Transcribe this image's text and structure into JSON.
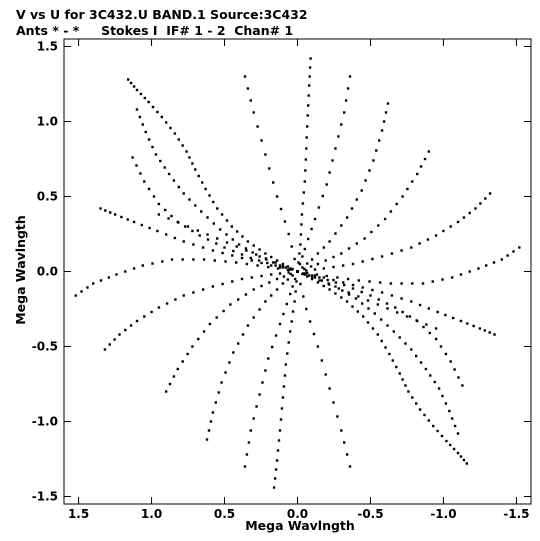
{
  "header": {
    "line1": "V vs U for 3C432.U BAND.1   Source:3C432",
    "line2": "Ants * - *     Stokes I  IF# 1 - 2  Chan# 1"
  },
  "chart_data": {
    "type": "scatter",
    "title": "V vs U for 3C432.U BAND.1   Source:3C432",
    "subtitle": "Ants * - *     Stokes I  IF# 1 - 2  Chan# 1",
    "xlabel": "Mega Wavlngth",
    "ylabel": "Mega Wavlngth",
    "xlim": [
      1.6,
      -1.6
    ],
    "ylim": [
      -1.55,
      1.55
    ],
    "x_ticks": [
      1.5,
      1.0,
      0.5,
      0.0,
      -0.5,
      -1.0,
      -1.5
    ],
    "x_tick_labels": [
      "1.5",
      "1.0",
      "0.5",
      "0.0",
      "-0.5",
      "-1.0",
      "-1.5"
    ],
    "y_ticks": [
      1.5,
      1.0,
      0.5,
      0.0,
      -0.5,
      -1.0,
      -1.5
    ],
    "y_tick_labels": [
      "1.5",
      "1.0",
      "0.5",
      "0.0",
      "-0.5",
      "-1.0",
      "-1.5"
    ],
    "grid": false,
    "marker_color": "#000000",
    "tracks": [
      {
        "u": [
          0.0,
          0.1,
          0.22,
          0.34,
          0.45,
          0.55,
          0.63,
          0.7,
          0.76,
          0.84,
          0.93,
          1.02,
          1.1,
          1.16
        ],
        "v": [
          0.0,
          0.05,
          0.12,
          0.2,
          0.3,
          0.42,
          0.55,
          0.68,
          0.8,
          0.92,
          1.03,
          1.13,
          1.21,
          1.28
        ]
      },
      {
        "u": [
          0.0,
          0.12,
          0.26,
          0.4,
          0.53,
          0.66,
          0.78,
          0.88,
          0.97,
          1.04,
          1.1
        ],
        "v": [
          0.0,
          0.04,
          0.1,
          0.18,
          0.28,
          0.4,
          0.52,
          0.65,
          0.78,
          0.93,
          1.08
        ]
      },
      {
        "u": [
          0.0,
          0.15,
          0.32,
          0.5,
          0.67,
          0.82,
          0.95,
          1.05,
          1.13
        ],
        "v": [
          0.0,
          0.04,
          0.09,
          0.16,
          0.24,
          0.33,
          0.45,
          0.6,
          0.76
        ]
      },
      {
        "u": [
          0.0,
          0.18,
          0.38,
          0.58,
          0.78,
          0.96,
          1.12,
          1.25,
          1.35
        ],
        "v": [
          0.0,
          0.04,
          0.09,
          0.14,
          0.2,
          0.27,
          0.33,
          0.38,
          0.42
        ]
      },
      {
        "u": [
          0.0,
          0.2,
          0.42,
          0.64,
          0.86,
          1.06,
          1.24,
          1.4,
          1.52
        ],
        "v": [
          0.0,
          0.03,
          0.06,
          0.08,
          0.08,
          0.04,
          -0.02,
          -0.08,
          -0.16
        ]
      },
      {
        "u": [
          0.0,
          0.18,
          0.38,
          0.58,
          0.78,
          0.95,
          1.1,
          1.22,
          1.32
        ],
        "v": [
          0.0,
          -0.02,
          -0.05,
          -0.1,
          -0.16,
          -0.24,
          -0.33,
          -0.42,
          -0.52
        ]
      },
      {
        "u": [
          0.0,
          0.14,
          0.3,
          0.46,
          0.6,
          0.72,
          0.82,
          0.9
        ],
        "v": [
          0.0,
          -0.05,
          -0.12,
          -0.22,
          -0.35,
          -0.5,
          -0.65,
          -0.8
        ]
      },
      {
        "u": [
          0.0,
          0.1,
          0.22,
          0.34,
          0.44,
          0.52,
          0.58,
          0.62
        ],
        "v": [
          0.0,
          -0.08,
          -0.2,
          -0.36,
          -0.54,
          -0.74,
          -0.94,
          -1.12
        ]
      },
      {
        "u": [
          0.0,
          0.05,
          0.12,
          0.2,
          0.26,
          0.32,
          0.36
        ],
        "v": [
          0.0,
          -0.15,
          -0.35,
          -0.58,
          -0.82,
          -1.06,
          -1.3
        ]
      },
      {
        "u": [
          0.0,
          -0.02,
          -0.03,
          -0.05,
          -0.06,
          -0.07,
          -0.08,
          -0.09
        ],
        "v": [
          0.0,
          0.18,
          0.38,
          0.6,
          0.82,
          1.04,
          1.24,
          1.42
        ]
      },
      {
        "u": [
          0.0,
          0.02,
          0.05,
          0.08,
          0.1,
          0.12,
          0.14,
          0.16
        ],
        "v": [
          0.0,
          -0.2,
          -0.4,
          -0.62,
          -0.84,
          -1.06,
          -1.26,
          -1.44
        ]
      },
      {
        "u": [
          0.0,
          0.06,
          0.14,
          0.22,
          0.3,
          0.36
        ],
        "v": [
          0.0,
          0.25,
          0.5,
          0.78,
          1.06,
          1.3
        ]
      },
      {
        "u": [
          0.0,
          -0.1,
          -0.22,
          -0.34,
          -0.45,
          -0.55,
          -0.63,
          -0.7,
          -0.76,
          -0.84,
          -0.93,
          -1.02,
          -1.1,
          -1.16
        ],
        "v": [
          0.0,
          -0.05,
          -0.12,
          -0.2,
          -0.3,
          -0.42,
          -0.55,
          -0.68,
          -0.8,
          -0.92,
          -1.03,
          -1.13,
          -1.21,
          -1.28
        ]
      },
      {
        "u": [
          0.0,
          -0.12,
          -0.26,
          -0.4,
          -0.53,
          -0.66,
          -0.78,
          -0.88,
          -0.97,
          -1.04,
          -1.1
        ],
        "v": [
          0.0,
          -0.04,
          -0.1,
          -0.18,
          -0.28,
          -0.4,
          -0.52,
          -0.65,
          -0.78,
          -0.93,
          -1.08
        ]
      },
      {
        "u": [
          0.0,
          -0.15,
          -0.32,
          -0.5,
          -0.67,
          -0.82,
          -0.95,
          -1.05,
          -1.13
        ],
        "v": [
          0.0,
          -0.04,
          -0.09,
          -0.16,
          -0.24,
          -0.33,
          -0.45,
          -0.6,
          -0.76
        ]
      },
      {
        "u": [
          0.0,
          -0.18,
          -0.38,
          -0.58,
          -0.78,
          -0.96,
          -1.12,
          -1.25,
          -1.35
        ],
        "v": [
          0.0,
          -0.04,
          -0.09,
          -0.14,
          -0.2,
          -0.27,
          -0.33,
          -0.38,
          -0.42
        ]
      },
      {
        "u": [
          0.0,
          -0.2,
          -0.42,
          -0.64,
          -0.86,
          -1.06,
          -1.24,
          -1.4,
          -1.52
        ],
        "v": [
          0.0,
          -0.03,
          -0.06,
          -0.08,
          -0.08,
          -0.04,
          0.02,
          0.08,
          0.16
        ]
      },
      {
        "u": [
          0.0,
          -0.18,
          -0.38,
          -0.58,
          -0.78,
          -0.95,
          -1.1,
          -1.22,
          -1.32
        ],
        "v": [
          0.0,
          0.02,
          0.05,
          0.1,
          0.16,
          0.24,
          0.33,
          0.42,
          0.52
        ]
      },
      {
        "u": [
          0.0,
          -0.14,
          -0.3,
          -0.46,
          -0.6,
          -0.72,
          -0.82,
          -0.9
        ],
        "v": [
          0.0,
          0.05,
          0.12,
          0.22,
          0.35,
          0.5,
          0.65,
          0.8
        ]
      },
      {
        "u": [
          0.0,
          -0.1,
          -0.22,
          -0.34,
          -0.44,
          -0.52,
          -0.58,
          -0.62
        ],
        "v": [
          0.0,
          0.08,
          0.2,
          0.36,
          0.54,
          0.74,
          0.94,
          1.12
        ]
      },
      {
        "u": [
          0.0,
          -0.05,
          -0.12,
          -0.2,
          -0.26,
          -0.32,
          -0.36
        ],
        "v": [
          0.0,
          0.15,
          0.35,
          0.58,
          0.82,
          1.06,
          1.3
        ]
      },
      {
        "u": [
          0.0,
          -0.06,
          -0.14,
          -0.22,
          -0.3,
          -0.36
        ],
        "v": [
          0.0,
          -0.25,
          -0.5,
          -0.78,
          -1.06,
          -1.3
        ]
      },
      {
        "u": [
          0.95,
          0.75,
          0.55,
          0.35,
          0.15,
          0.0,
          -0.15,
          -0.35,
          -0.55,
          -0.75,
          -0.95
        ],
        "v": [
          0.38,
          0.3,
          0.22,
          0.14,
          0.06,
          0.0,
          -0.06,
          -0.14,
          -0.22,
          -0.3,
          -0.38
        ]
      }
    ]
  }
}
